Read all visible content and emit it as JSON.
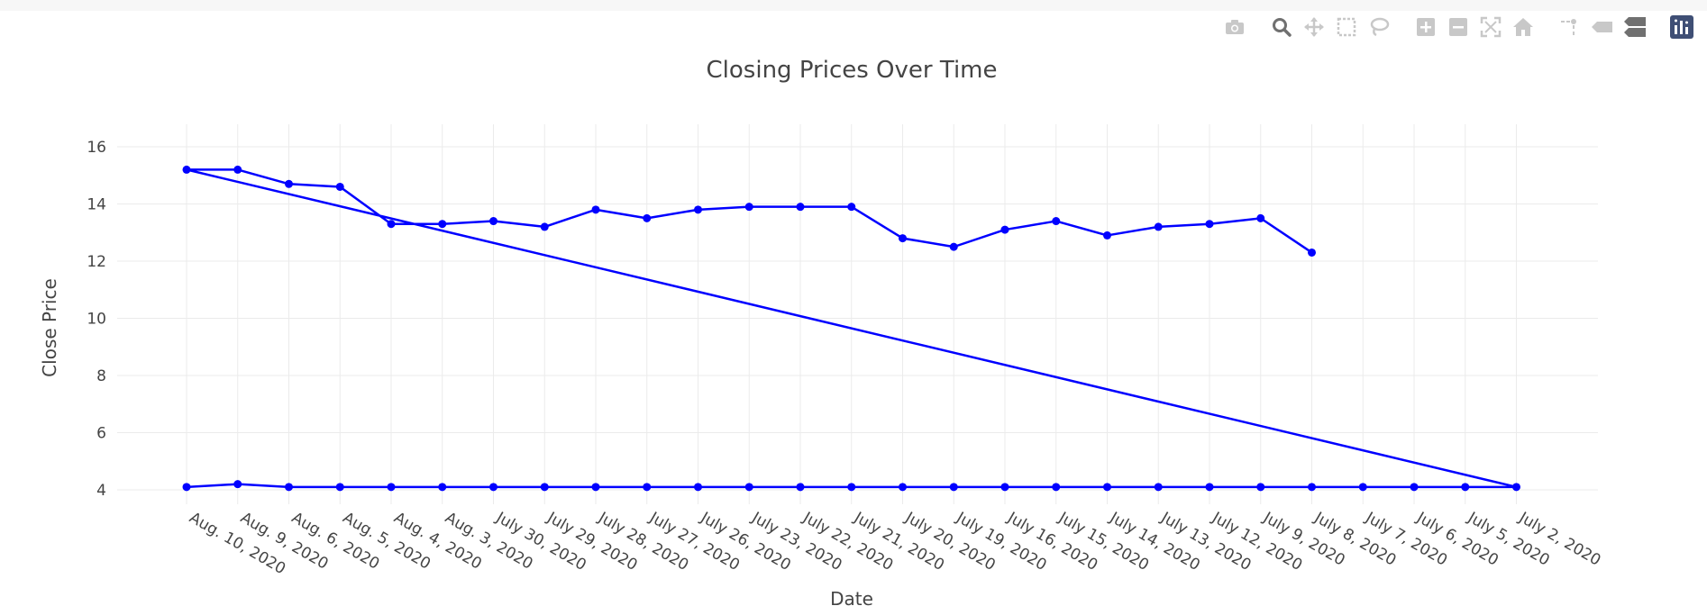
{
  "modebar": {
    "buttons": [
      {
        "name": "camera-icon",
        "group": 1
      },
      {
        "name": "zoom-icon",
        "group": 2,
        "active": true
      },
      {
        "name": "pan-icon",
        "group": 2
      },
      {
        "name": "box-select-icon",
        "group": 2
      },
      {
        "name": "lasso-select-icon",
        "group": 2
      },
      {
        "name": "zoom-in-icon",
        "group": 3
      },
      {
        "name": "zoom-out-icon",
        "group": 3
      },
      {
        "name": "autoscale-icon",
        "group": 3
      },
      {
        "name": "reset-axes-icon",
        "group": 3
      },
      {
        "name": "spike-lines-icon",
        "group": 4
      },
      {
        "name": "hover-closest-icon",
        "group": 4
      },
      {
        "name": "hover-compare-icon",
        "group": 4
      },
      {
        "name": "plotly-logo-icon",
        "group": 5
      }
    ]
  },
  "chart_data": {
    "type": "line",
    "title": "Closing Prices Over Time",
    "xlabel": "Date",
    "ylabel": "Close Price",
    "ylim": [
      3.4,
      16
    ],
    "yticks": [
      4,
      6,
      8,
      10,
      12,
      14,
      16
    ],
    "grid": true,
    "legend": "none",
    "colors": {
      "line": "#0000ff",
      "grid": "#ebebeb",
      "text": "#444444"
    },
    "categories": [
      "Aug. 10, 2020",
      "Aug. 9, 2020",
      "Aug. 6, 2020",
      "Aug. 5, 2020",
      "Aug. 4, 2020",
      "Aug. 3, 2020",
      "July 30, 2020",
      "July 29, 2020",
      "July 28, 2020",
      "July 27, 2020",
      "July 26, 2020",
      "July 23, 2020",
      "July 22, 2020",
      "July 21, 2020",
      "July 20, 2020",
      "July 19, 2020",
      "July 16, 2020",
      "July 15, 2020",
      "July 14, 2020",
      "July 13, 2020",
      "July 12, 2020",
      "July 9, 2020",
      "July 8, 2020",
      "July 7, 2020",
      "July 6, 2020",
      "July 5, 2020",
      "July 2, 2020"
    ],
    "series": [
      {
        "x": [
          "Aug. 10, 2020",
          "Aug. 9, 2020",
          "Aug. 6, 2020",
          "Aug. 5, 2020",
          "Aug. 4, 2020",
          "Aug. 3, 2020",
          "July 30, 2020",
          "July 29, 2020",
          "July 28, 2020",
          "July 27, 2020",
          "July 26, 2020",
          "July 23, 2020",
          "July 22, 2020",
          "July 21, 2020",
          "July 20, 2020",
          "July 19, 2020",
          "July 16, 2020",
          "July 15, 2020",
          "July 14, 2020",
          "July 13, 2020",
          "July 12, 2020",
          "July 9, 2020",
          "July 8, 2020",
          "July 7, 2020",
          "July 6, 2020",
          "July 5, 2020",
          "July 2, 2020",
          "Aug. 10, 2020",
          "Aug. 9, 2020",
          "Aug. 6, 2020",
          "Aug. 5, 2020",
          "Aug. 4, 2020",
          "Aug. 3, 2020",
          "July 30, 2020",
          "July 29, 2020",
          "July 28, 2020",
          "July 27, 2020",
          "July 26, 2020",
          "July 23, 2020",
          "July 22, 2020",
          "July 21, 2020",
          "July 20, 2020",
          "July 19, 2020",
          "July 16, 2020",
          "July 15, 2020",
          "July 14, 2020",
          "July 13, 2020",
          "July 12, 2020",
          "July 9, 2020",
          "July 8, 2020"
        ],
        "y": [
          4.1,
          4.2,
          4.1,
          4.1,
          4.1,
          4.1,
          4.1,
          4.1,
          4.1,
          4.1,
          4.1,
          4.1,
          4.1,
          4.1,
          4.1,
          4.1,
          4.1,
          4.1,
          4.1,
          4.1,
          4.1,
          4.1,
          4.1,
          4.1,
          4.1,
          4.1,
          4.1,
          15.2,
          15.2,
          14.7,
          14.6,
          13.3,
          13.3,
          13.4,
          13.2,
          13.8,
          13.5,
          13.8,
          13.9,
          13.9,
          13.9,
          12.8,
          12.5,
          13.1,
          13.4,
          12.9,
          13.2,
          13.3,
          13.5,
          12.3
        ]
      }
    ]
  }
}
